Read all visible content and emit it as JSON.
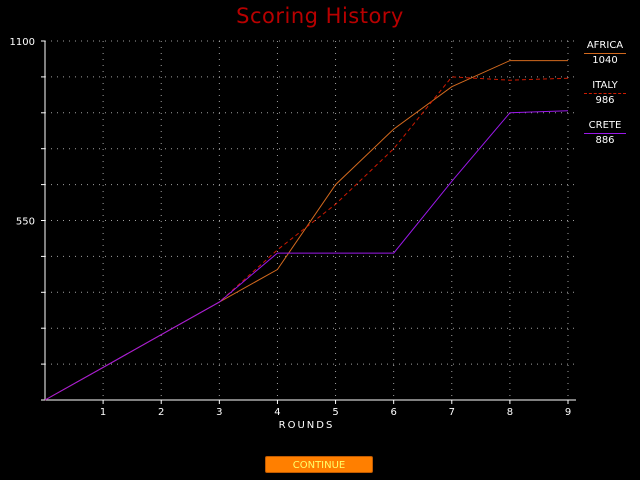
{
  "screen": {
    "title": "Scoring History"
  },
  "chart_data": {
    "type": "line",
    "xlabel": "ROUNDS",
    "ylabel": "",
    "x_ticks": [
      1,
      2,
      3,
      4,
      5,
      6,
      7,
      8,
      9
    ],
    "y_ticks_labeled": [
      550,
      1100
    ],
    "ylim": [
      0,
      1100
    ],
    "xlim": [
      0,
      9
    ],
    "grid": true,
    "legend_position": "right",
    "series": [
      {
        "name": "AFRICA",
        "score": "1040",
        "color": "#d2691e",
        "style": "solid",
        "x": [
          0,
          1,
          2,
          3,
          4,
          5,
          6,
          7,
          8,
          9
        ],
        "y": [
          0,
          100,
          200,
          300,
          400,
          660,
          830,
          960,
          1040,
          1040
        ]
      },
      {
        "name": "ITALY",
        "score": "986",
        "color": "#cc1a00",
        "style": "dashed",
        "x": [
          0,
          1,
          2,
          3,
          4,
          5,
          6,
          7,
          8,
          9
        ],
        "y": [
          0,
          100,
          200,
          300,
          460,
          600,
          770,
          990,
          980,
          986
        ]
      },
      {
        "name": "CRETE",
        "score": "886",
        "color": "#9a18e8",
        "style": "solid",
        "x": [
          0,
          1,
          2,
          3,
          4,
          5,
          6,
          7,
          8,
          9
        ],
        "y": [
          0,
          100,
          200,
          300,
          450,
          450,
          450,
          670,
          880,
          886
        ]
      }
    ]
  },
  "buttons": {
    "continue_label": "CONTINUE"
  }
}
